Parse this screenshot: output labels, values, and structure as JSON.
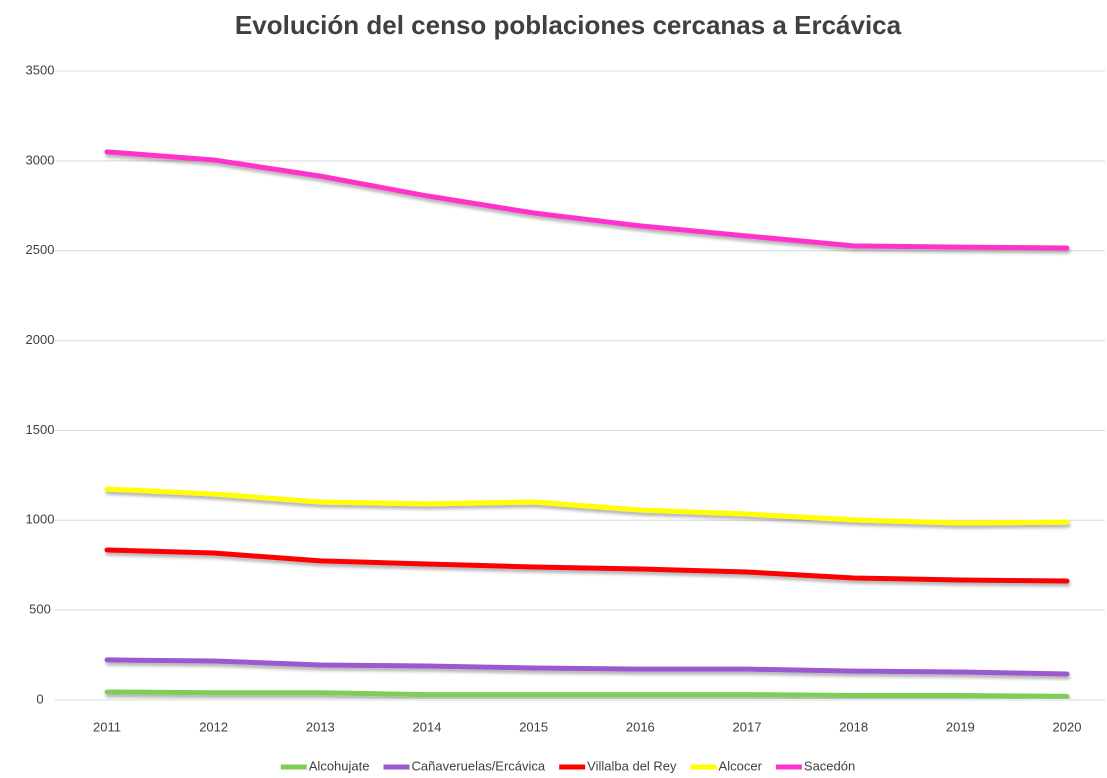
{
  "chart_data": {
    "type": "line",
    "title": "Evolución del censo poblaciones cercanas a Ercávica",
    "categories": [
      "2011",
      "2012",
      "2013",
      "2014",
      "2015",
      "2016",
      "2017",
      "2018",
      "2019",
      "2020"
    ],
    "series": [
      {
        "name": "Alcohujate",
        "color": "#7fcc5a",
        "values": [
          45,
          40,
          40,
          30,
          30,
          30,
          30,
          25,
          25,
          20
        ]
      },
      {
        "name": "Cañaveruelas/Ercávica",
        "color": "#9b59d0",
        "values": [
          223,
          217,
          195,
          189,
          178,
          172,
          172,
          161,
          156,
          145
        ]
      },
      {
        "name": "Villalba del Rey",
        "color": "#ff0000",
        "values": [
          835,
          818,
          774,
          757,
          740,
          729,
          712,
          679,
          668,
          662
        ]
      },
      {
        "name": "Alcocer",
        "color": "#ffff00",
        "values": [
          1174,
          1146,
          1102,
          1091,
          1102,
          1057,
          1035,
          1002,
          985,
          990
        ]
      },
      {
        "name": "Sacedón",
        "color": "#ff33cc",
        "values": [
          3050,
          3005,
          2915,
          2805,
          2710,
          2638,
          2582,
          2527,
          2520,
          2515
        ]
      }
    ],
    "ylim": [
      0,
      3500
    ],
    "yticks": [
      0,
      500,
      1000,
      1500,
      2000,
      2500,
      3000,
      3500
    ],
    "grid": true,
    "legend": "bottom"
  }
}
